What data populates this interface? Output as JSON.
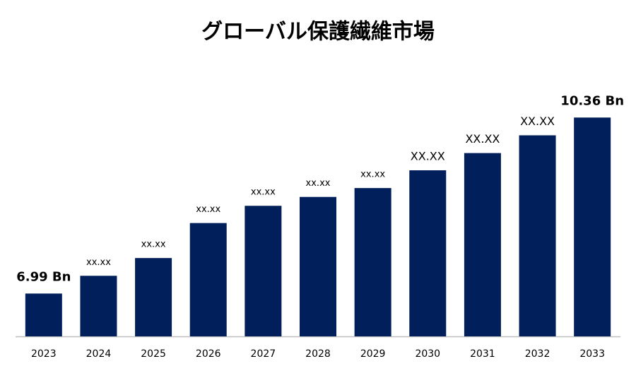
{
  "chart_data": {
    "type": "bar",
    "title": "グローバル保護繊維市場",
    "categories": [
      "2023",
      "2024",
      "2025",
      "2026",
      "2027",
      "2028",
      "2029",
      "2030",
      "2031",
      "2032",
      "2033"
    ],
    "values": [
      6.99,
      7.33,
      7.67,
      8.34,
      8.67,
      8.84,
      9.01,
      9.35,
      9.68,
      10.02,
      10.36
    ],
    "value_labels": [
      "6.99 Bn",
      "xx.xx",
      "xx.xx",
      "xx.xx",
      "xx.xx",
      "xx.xx",
      "xx.xx",
      "XX.XX",
      "XX.XX",
      "XX.XX",
      "10.36 Bn"
    ],
    "color": "#001f5b",
    "ylim": [
      6.17,
      10.5
    ]
  }
}
